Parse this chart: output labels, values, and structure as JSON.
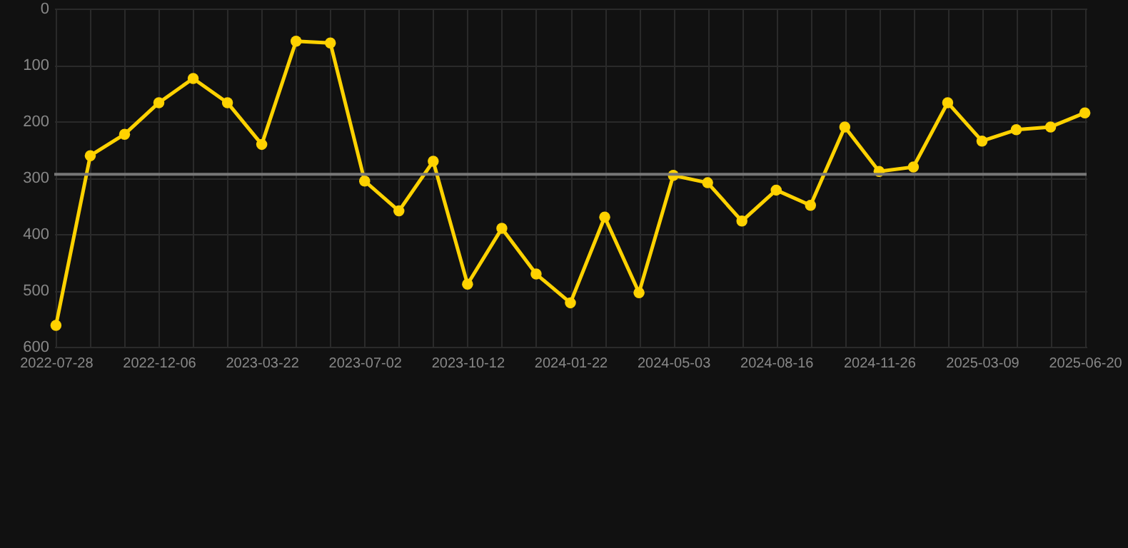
{
  "chart_data": {
    "type": "line",
    "categories": [
      "2022-07-28",
      null,
      null,
      "2022-12-06",
      null,
      null,
      "2023-03-22",
      null,
      null,
      "2023-07-02",
      null,
      null,
      "2023-10-12",
      null,
      null,
      "2024-01-22",
      null,
      null,
      "2024-05-03",
      null,
      null,
      "2024-08-16",
      null,
      null,
      "2024-11-26",
      null,
      null,
      "2025-03-09",
      null,
      null,
      "2025-06-20"
    ],
    "series": [
      {
        "color": "#ffd200",
        "values": [
          562,
          261,
          223,
          167,
          124,
          167,
          241,
          58,
          61,
          306,
          359,
          271,
          489,
          390,
          471,
          522,
          370,
          504,
          296,
          309,
          377,
          322,
          349,
          210,
          289,
          281,
          167,
          235,
          215,
          210,
          185
        ]
      }
    ],
    "ylim": [
      600,
      0
    ],
    "yticks": [
      0,
      100,
      200,
      300,
      400,
      500,
      600
    ],
    "grid": true,
    "marker": "circle",
    "line_style": "solid",
    "ref_lines": [
      {
        "axis": "y",
        "value": 294,
        "color": "#777777"
      }
    ]
  }
}
